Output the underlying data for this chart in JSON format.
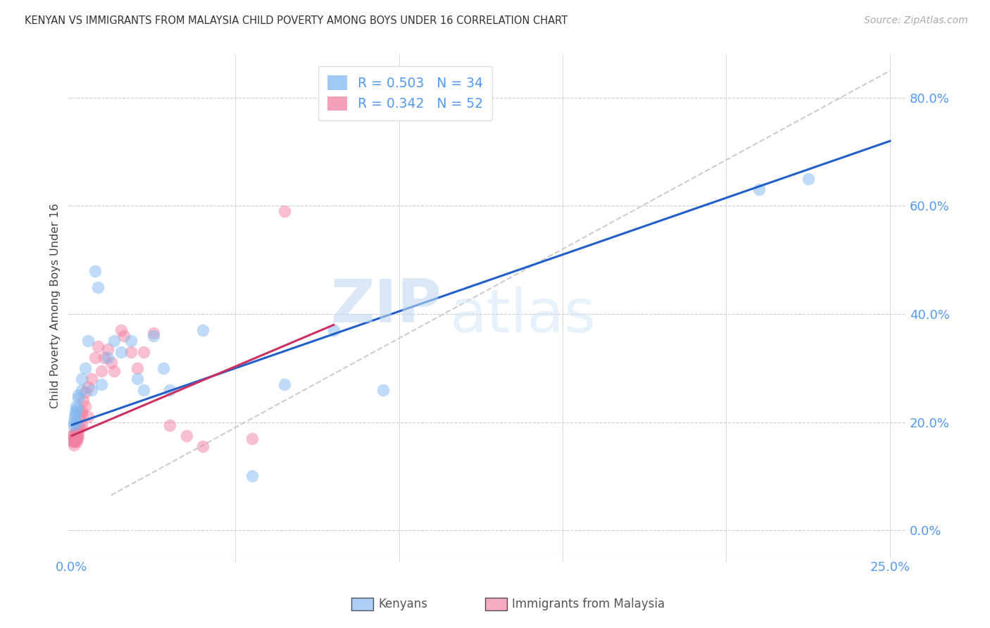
{
  "title": "KENYAN VS IMMIGRANTS FROM MALAYSIA CHILD POVERTY AMONG BOYS UNDER 16 CORRELATION CHART",
  "source": "Source: ZipAtlas.com",
  "axis_color": "#5599ee",
  "ylabel": "Child Poverty Among Boys Under 16",
  "xlim": [
    -0.001,
    0.255
  ],
  "ylim": [
    -0.05,
    0.88
  ],
  "yticks": [
    0.0,
    0.2,
    0.4,
    0.6,
    0.8
  ],
  "xtick_positions": [
    0.0,
    0.25
  ],
  "xtick_labels": [
    "0.0%",
    "25.0%"
  ],
  "xtick_minor": [
    0.05,
    0.1,
    0.15,
    0.2
  ],
  "watermark_zip": "ZIP",
  "watermark_atlas": "atlas",
  "r_kenyan": 0.503,
  "n_kenyan": 34,
  "r_malaysia": 0.342,
  "n_malaysia": 52,
  "blue_color": "#80b8f0",
  "pink_color": "#f080a0",
  "trend_blue": "#2060c8",
  "trend_pink": "#cc3060",
  "ref_line_color": "#cccccc",
  "grid_color": "#cccccc",
  "blue_trend_x": [
    0.0,
    0.25
  ],
  "blue_trend_y": [
    0.195,
    0.72
  ],
  "pink_trend_x": [
    0.0,
    0.08
  ],
  "pink_trend_y": [
    0.175,
    0.38
  ],
  "ref_line_x": [
    0.012,
    0.25
  ],
  "ref_line_y": [
    0.065,
    0.85
  ],
  "kenyan_x": [
    0.0005,
    0.0005,
    0.0008,
    0.001,
    0.001,
    0.0012,
    0.0015,
    0.0015,
    0.002,
    0.002,
    0.003,
    0.003,
    0.004,
    0.005,
    0.006,
    0.007,
    0.008,
    0.009,
    0.011,
    0.013,
    0.015,
    0.018,
    0.02,
    0.022,
    0.025,
    0.028,
    0.03,
    0.04,
    0.055,
    0.065,
    0.08,
    0.095,
    0.21,
    0.225
  ],
  "kenyan_y": [
    0.2,
    0.195,
    0.21,
    0.22,
    0.215,
    0.23,
    0.2,
    0.225,
    0.25,
    0.245,
    0.28,
    0.26,
    0.3,
    0.35,
    0.26,
    0.48,
    0.45,
    0.27,
    0.32,
    0.35,
    0.33,
    0.35,
    0.28,
    0.26,
    0.36,
    0.3,
    0.26,
    0.37,
    0.1,
    0.27,
    0.37,
    0.26,
    0.63,
    0.65
  ],
  "malaysia_x": [
    0.0003,
    0.0003,
    0.0004,
    0.0005,
    0.0005,
    0.0006,
    0.0007,
    0.0008,
    0.0008,
    0.0009,
    0.001,
    0.001,
    0.001,
    0.0012,
    0.0013,
    0.0014,
    0.0015,
    0.0015,
    0.0016,
    0.0018,
    0.002,
    0.002,
    0.002,
    0.0022,
    0.0025,
    0.003,
    0.003,
    0.003,
    0.0035,
    0.004,
    0.004,
    0.005,
    0.005,
    0.006,
    0.007,
    0.008,
    0.009,
    0.01,
    0.011,
    0.012,
    0.013,
    0.015,
    0.016,
    0.018,
    0.02,
    0.022,
    0.025,
    0.03,
    0.035,
    0.04,
    0.055,
    0.065
  ],
  "malaysia_y": [
    0.175,
    0.165,
    0.17,
    0.178,
    0.168,
    0.165,
    0.158,
    0.17,
    0.172,
    0.165,
    0.175,
    0.178,
    0.168,
    0.185,
    0.175,
    0.168,
    0.178,
    0.182,
    0.165,
    0.172,
    0.195,
    0.185,
    0.175,
    0.21,
    0.19,
    0.22,
    0.215,
    0.195,
    0.24,
    0.255,
    0.23,
    0.265,
    0.21,
    0.28,
    0.32,
    0.34,
    0.295,
    0.32,
    0.335,
    0.31,
    0.295,
    0.37,
    0.36,
    0.33,
    0.3,
    0.33,
    0.365,
    0.195,
    0.175,
    0.155,
    0.17,
    0.59
  ]
}
